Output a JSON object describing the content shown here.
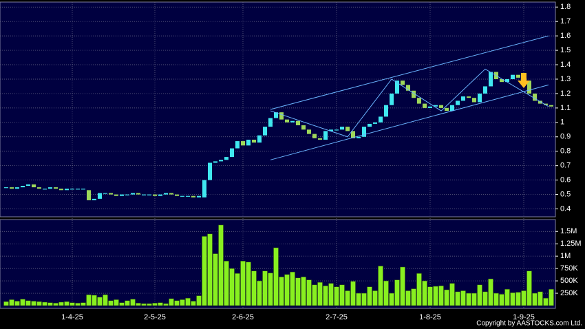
{
  "chart_data": [
    {
      "type": "candlestick",
      "xlim": [
        -0.5,
        99.5
      ],
      "xticks": [
        {
          "value": 12,
          "label": "1-4-25"
        },
        {
          "value": 27,
          "label": "2-5-25"
        },
        {
          "value": 43,
          "label": "2-6-25"
        },
        {
          "value": 60,
          "label": "2-7-25"
        },
        {
          "value": 77,
          "label": "1-8-25"
        },
        {
          "value": 94,
          "label": "1-9-25"
        }
      ],
      "ylim": [
        0.35,
        1.825
      ],
      "yticks": [
        0.4,
        0.5,
        0.6,
        0.7,
        0.8,
        0.9,
        1,
        1.1,
        1.2,
        1.3,
        1.4,
        1.5,
        1.6,
        1.7,
        1.8
      ],
      "grid": true,
      "up_color": "#40e8f0",
      "down_color": "#9ed85a",
      "trend_color": "#6ab4ff",
      "open": [
        0.55,
        0.55,
        0.54,
        0.55,
        0.56,
        0.57,
        0.55,
        0.54,
        0.54,
        0.55,
        0.54,
        0.53,
        0.54,
        0.54,
        0.54,
        0.53,
        0.46,
        0.47,
        0.51,
        0.51,
        0.5,
        0.49,
        0.5,
        0.5,
        0.51,
        0.5,
        0.5,
        0.5,
        0.49,
        0.5,
        0.51,
        0.5,
        0.49,
        0.49,
        0.49,
        0.48,
        0.48,
        0.6,
        0.72,
        0.73,
        0.74,
        0.76,
        0.82,
        0.87,
        0.84,
        0.88,
        0.86,
        0.91,
        0.97,
        1.03,
        1.07,
        1.02,
        1.0,
        1.01,
        0.98,
        0.95,
        0.92,
        0.89,
        0.88,
        0.94,
        0.95,
        0.95,
        0.97,
        0.94,
        0.89,
        0.9,
        0.97,
        0.99,
        1.0,
        1.04,
        1.12,
        1.2,
        1.29,
        1.26,
        1.22,
        1.17,
        1.13,
        1.1,
        1.11,
        1.12,
        1.1,
        1.08,
        1.12,
        1.15,
        1.18,
        1.17,
        1.14,
        1.2,
        1.25,
        1.35,
        1.3,
        1.28,
        1.3,
        1.33,
        1.31,
        1.29,
        1.2,
        1.15,
        1.13,
        1.12
      ],
      "close": [
        0.55,
        0.54,
        0.55,
        0.56,
        0.57,
        0.55,
        0.54,
        0.54,
        0.55,
        0.54,
        0.53,
        0.54,
        0.54,
        0.54,
        0.54,
        0.46,
        0.47,
        0.51,
        0.51,
        0.5,
        0.49,
        0.5,
        0.5,
        0.51,
        0.5,
        0.5,
        0.5,
        0.49,
        0.5,
        0.51,
        0.5,
        0.49,
        0.49,
        0.49,
        0.48,
        0.49,
        0.6,
        0.72,
        0.73,
        0.74,
        0.76,
        0.82,
        0.87,
        0.84,
        0.88,
        0.86,
        0.91,
        0.97,
        1.03,
        1.07,
        1.02,
        1.0,
        1.01,
        0.98,
        0.95,
        0.92,
        0.89,
        0.88,
        0.94,
        0.95,
        0.95,
        0.97,
        0.94,
        0.89,
        0.9,
        0.97,
        0.99,
        1.0,
        1.04,
        1.12,
        1.2,
        1.29,
        1.26,
        1.22,
        1.17,
        1.13,
        1.1,
        1.11,
        1.12,
        1.1,
        1.08,
        1.12,
        1.15,
        1.18,
        1.17,
        1.14,
        1.2,
        1.25,
        1.35,
        1.3,
        1.28,
        1.3,
        1.33,
        1.31,
        1.29,
        1.2,
        1.15,
        1.13,
        1.12,
        1.11
      ],
      "trendlines": [
        {
          "x": [
            48,
            98.5
          ],
          "y": [
            1.09,
            1.6
          ]
        },
        {
          "x": [
            48,
            98.5
          ],
          "y": [
            0.74,
            1.26
          ]
        },
        {
          "x": [
            48,
            62,
            70,
            79,
            87,
            98.5
          ],
          "y": [
            1.08,
            0.9,
            1.3,
            1.08,
            1.37,
            1.11
          ]
        }
      ]
    },
    {
      "type": "bar",
      "xlim": [
        -0.5,
        99.5
      ],
      "ylim": [
        0,
        1740000
      ],
      "yticks": [
        {
          "value": 250000,
          "label": "250K"
        },
        {
          "value": 500000,
          "label": "500K"
        },
        {
          "value": 750000,
          "label": "750K"
        },
        {
          "value": 1000000,
          "label": "1M"
        },
        {
          "value": 1250000,
          "label": "1.25M"
        },
        {
          "value": 1500000,
          "label": "1.5M"
        }
      ],
      "grid": true,
      "color": "#88f020",
      "values": [
        80000,
        120000,
        90000,
        130000,
        100000,
        90000,
        80000,
        70000,
        60000,
        50000,
        70000,
        80000,
        60000,
        50000,
        60000,
        220000,
        210000,
        170000,
        220000,
        100000,
        120000,
        60000,
        100000,
        130000,
        50000,
        40000,
        40000,
        50000,
        60000,
        40000,
        140000,
        100000,
        120000,
        150000,
        90000,
        200000,
        1400000,
        1450000,
        1050000,
        1630000,
        900000,
        750000,
        650000,
        900000,
        880000,
        700000,
        500000,
        700000,
        660000,
        1170000,
        580000,
        630000,
        680000,
        560000,
        580000,
        520000,
        420000,
        470000,
        400000,
        450000,
        380000,
        420000,
        300000,
        490000,
        250000,
        250000,
        380000,
        300000,
        800000,
        500000,
        250000,
        520000,
        780000,
        300000,
        340000,
        650000,
        500000,
        380000,
        390000,
        400000,
        320000,
        450000,
        280000,
        300000,
        250000,
        250000,
        420000,
        280000,
        540000,
        250000,
        230000,
        330000,
        260000,
        270000,
        300000,
        700000,
        250000,
        280000,
        150000,
        330000
      ]
    }
  ],
  "copyright": "Copyright by AASTOCKS.com Ltd."
}
